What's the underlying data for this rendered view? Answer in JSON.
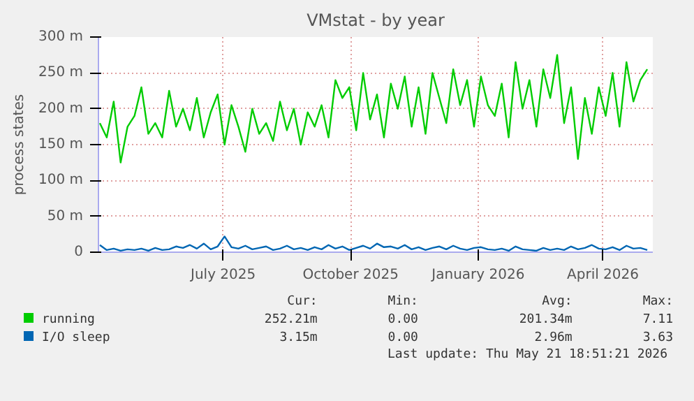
{
  "chart_data": {
    "type": "line",
    "title": "VMstat - by year",
    "ylabel": "process states",
    "x": [
      "2025-04-03",
      "2025-04-08",
      "2025-04-13",
      "2025-04-18",
      "2025-04-23",
      "2025-04-28",
      "2025-05-03",
      "2025-05-08",
      "2025-05-13",
      "2025-05-18",
      "2025-05-23",
      "2025-05-28",
      "2025-06-02",
      "2025-06-07",
      "2025-06-12",
      "2025-06-17",
      "2025-06-22",
      "2025-06-27",
      "2025-07-02",
      "2025-07-07",
      "2025-07-12",
      "2025-07-17",
      "2025-07-22",
      "2025-07-27",
      "2025-08-01",
      "2025-08-06",
      "2025-08-11",
      "2025-08-16",
      "2025-08-21",
      "2025-08-26",
      "2025-08-31",
      "2025-09-05",
      "2025-09-10",
      "2025-09-15",
      "2025-09-20",
      "2025-09-25",
      "2025-09-30",
      "2025-10-05",
      "2025-10-10",
      "2025-10-15",
      "2025-10-20",
      "2025-10-25",
      "2025-10-30",
      "2025-11-04",
      "2025-11-09",
      "2025-11-14",
      "2025-11-19",
      "2025-11-24",
      "2025-11-29",
      "2025-12-04",
      "2025-12-09",
      "2025-12-14",
      "2025-12-19",
      "2025-12-24",
      "2025-12-29",
      "2026-01-03",
      "2026-01-08",
      "2026-01-13",
      "2026-01-18",
      "2026-01-23",
      "2026-01-28",
      "2026-02-02",
      "2026-02-07",
      "2026-02-12",
      "2026-02-17",
      "2026-02-22",
      "2026-02-27",
      "2026-03-04",
      "2026-03-09",
      "2026-03-14",
      "2026-03-19",
      "2026-03-24",
      "2026-03-29",
      "2026-04-03",
      "2026-04-08",
      "2026-04-13",
      "2026-04-18",
      "2026-04-23",
      "2026-04-28",
      "2026-05-03"
    ],
    "series": [
      {
        "name": "running",
        "color": "#00cc00",
        "values": [
          180,
          160,
          210,
          125,
          175,
          190,
          230,
          165,
          180,
          160,
          225,
          175,
          200,
          170,
          215,
          160,
          195,
          220,
          150,
          205,
          175,
          140,
          200,
          165,
          180,
          155,
          210,
          170,
          200,
          150,
          195,
          175,
          205,
          160,
          240,
          215,
          230,
          170,
          250,
          185,
          220,
          160,
          235,
          200,
          245,
          175,
          230,
          165,
          250,
          215,
          180,
          255,
          205,
          240,
          175,
          245,
          205,
          190,
          235,
          160,
          265,
          200,
          240,
          175,
          255,
          215,
          275,
          180,
          230,
          130,
          215,
          165,
          230,
          190,
          250,
          175,
          265,
          210,
          240,
          255
        ]
      },
      {
        "name": "I/O sleep",
        "color": "#0066b3",
        "values": [
          10,
          3,
          5,
          2,
          4,
          3,
          5,
          2,
          6,
          3,
          4,
          8,
          6,
          10,
          5,
          12,
          4,
          8,
          22,
          7,
          5,
          9,
          4,
          6,
          8,
          3,
          5,
          9,
          4,
          6,
          3,
          7,
          4,
          10,
          5,
          8,
          3,
          6,
          9,
          5,
          12,
          7,
          8,
          5,
          10,
          4,
          7,
          3,
          6,
          8,
          4,
          9,
          5,
          3,
          6,
          7,
          4,
          3,
          5,
          2,
          8,
          4,
          3,
          2,
          6,
          3,
          5,
          3,
          8,
          4,
          6,
          10,
          5,
          4,
          7,
          3,
          9,
          5,
          6,
          3
        ]
      }
    ],
    "xlim": [
      "2025-04-02",
      "2026-05-07"
    ],
    "xticks": [
      {
        "value": "2025-07-01",
        "label": "July 2025"
      },
      {
        "value": "2025-10-01",
        "label": "October 2025"
      },
      {
        "value": "2026-01-01",
        "label": "January 2026"
      },
      {
        "value": "2026-04-01",
        "label": "April 2026"
      }
    ],
    "ylim": [
      0,
      300
    ],
    "yticks": [
      {
        "value": 0,
        "label": "0"
      },
      {
        "value": 50,
        "label": "50 m"
      },
      {
        "value": 100,
        "label": "100 m"
      },
      {
        "value": 150,
        "label": "150 m"
      },
      {
        "value": 200,
        "label": "200 m"
      },
      {
        "value": 250,
        "label": "250 m"
      },
      {
        "value": 300,
        "label": "300 m"
      }
    ],
    "grid": true,
    "legend": "bottom",
    "annotations": [
      "Cur:",
      "Min:",
      "Avg:",
      "Max:",
      "252.21m",
      "0.00",
      "201.34m",
      "7.11",
      "3.15m",
      "0.00",
      "2.96m",
      "3.63",
      "Last update: Thu May 21 18:51:21 2026"
    ]
  }
}
